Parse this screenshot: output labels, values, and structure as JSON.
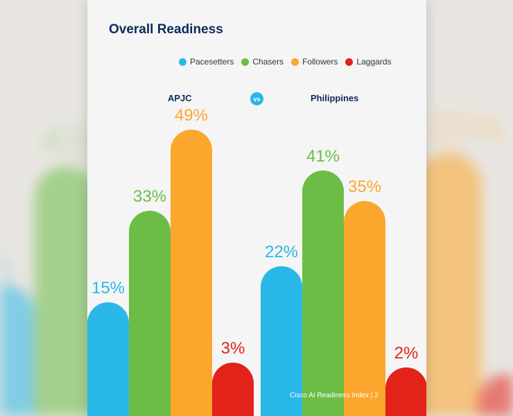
{
  "page": {
    "title": "Overall Readiness",
    "vs_label": "vs",
    "footer": "Cisco AI Readiness Index  |  2"
  },
  "chart_data": {
    "type": "bar",
    "title": "Overall Readiness",
    "categories": [
      "APJC",
      "Philippines"
    ],
    "series": [
      {
        "name": "Pacesetters",
        "color": "#29b8e8",
        "values": [
          15,
          22
        ]
      },
      {
        "name": "Chasers",
        "color": "#6cbd45",
        "values": [
          33,
          41
        ]
      },
      {
        "name": "Followers",
        "color": "#fba62d",
        "values": [
          49,
          35
        ]
      },
      {
        "name": "Laggards",
        "color": "#e2231a",
        "values": [
          3,
          2
        ]
      }
    ],
    "data_labels": [
      [
        "15%",
        "33%",
        "49%",
        "3%"
      ],
      [
        "22%",
        "41%",
        "35%",
        "2%"
      ]
    ],
    "ylim": [
      0,
      55
    ],
    "grid": false,
    "legend_position": "top"
  }
}
